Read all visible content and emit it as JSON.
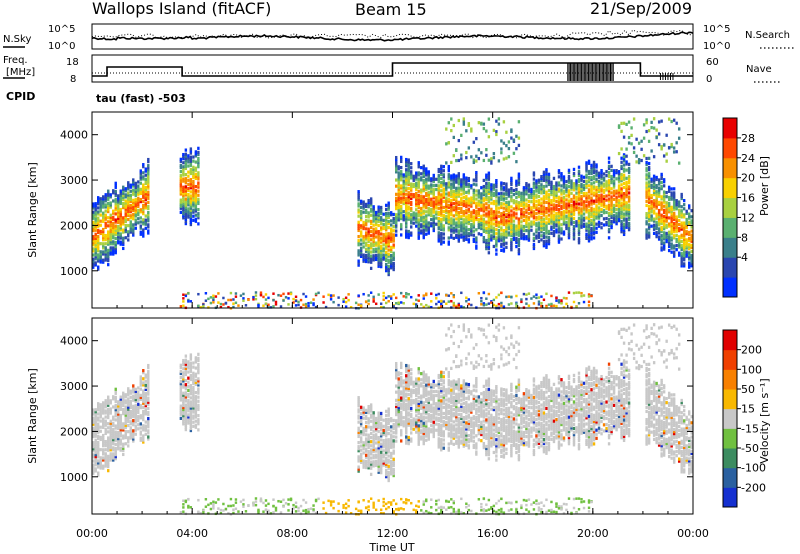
{
  "header": {
    "station": "Wallops Island (fitACF)",
    "beam": "Beam 15",
    "date": "21/Sep/2009"
  },
  "noise_panel": {
    "left_label": "N.Sky",
    "left_ticks": [
      "10^5",
      "10^0"
    ],
    "right_ticks": [
      "10^5",
      "10^0"
    ],
    "right_label": "N.Search"
  },
  "freq_panel": {
    "left_label_1": "Freq.",
    "left_label_2": "[MHz]",
    "left_ticks": [
      "18",
      "8"
    ],
    "right_ticks": [
      "60",
      "0"
    ],
    "right_label": "Nave"
  },
  "cpid": {
    "label": "CPID",
    "value": "tau (fast)  -503"
  },
  "chart_data": [
    {
      "type": "heatmap",
      "name_panel": "power",
      "ylabel": "Slant Range [km]",
      "y_ticks": [
        "1000",
        "2000",
        "3000",
        "4000"
      ],
      "ylim": [
        180,
        4500
      ],
      "colorbar": {
        "label": "Power [dB]",
        "ticks": [
          "4",
          "8",
          "12",
          "16",
          "20",
          "24",
          "28"
        ],
        "colors": [
          "#0030ff",
          "#2a46b0",
          "#3a7f8a",
          "#5ab070",
          "#a8d040",
          "#f8d000",
          "#f89000",
          "#ff4800",
          "#e80000"
        ]
      }
    },
    {
      "type": "heatmap",
      "name_panel": "velocity",
      "ylabel": "Slant Range [km]",
      "y_ticks": [
        "1000",
        "2000",
        "3000",
        "4000"
      ],
      "ylim": [
        180,
        4500
      ],
      "colorbar": {
        "label": "Velocity [m s⁻¹]",
        "ticks": [
          "200",
          "100",
          "50",
          "15",
          "-15",
          "-50",
          "-100",
          "-200"
        ],
        "colors": [
          "#1530d0",
          "#2a60a0",
          "#3c8c60",
          "#70c040",
          "#c8c8c8",
          "#f8b800",
          "#f88000",
          "#f04000",
          "#e00000"
        ]
      }
    }
  ],
  "time_axis": {
    "xlabel": "Time UT",
    "ticks": [
      "00:00",
      "04:00",
      "08:00",
      "12:00",
      "16:00",
      "20:00",
      "00:00"
    ]
  }
}
